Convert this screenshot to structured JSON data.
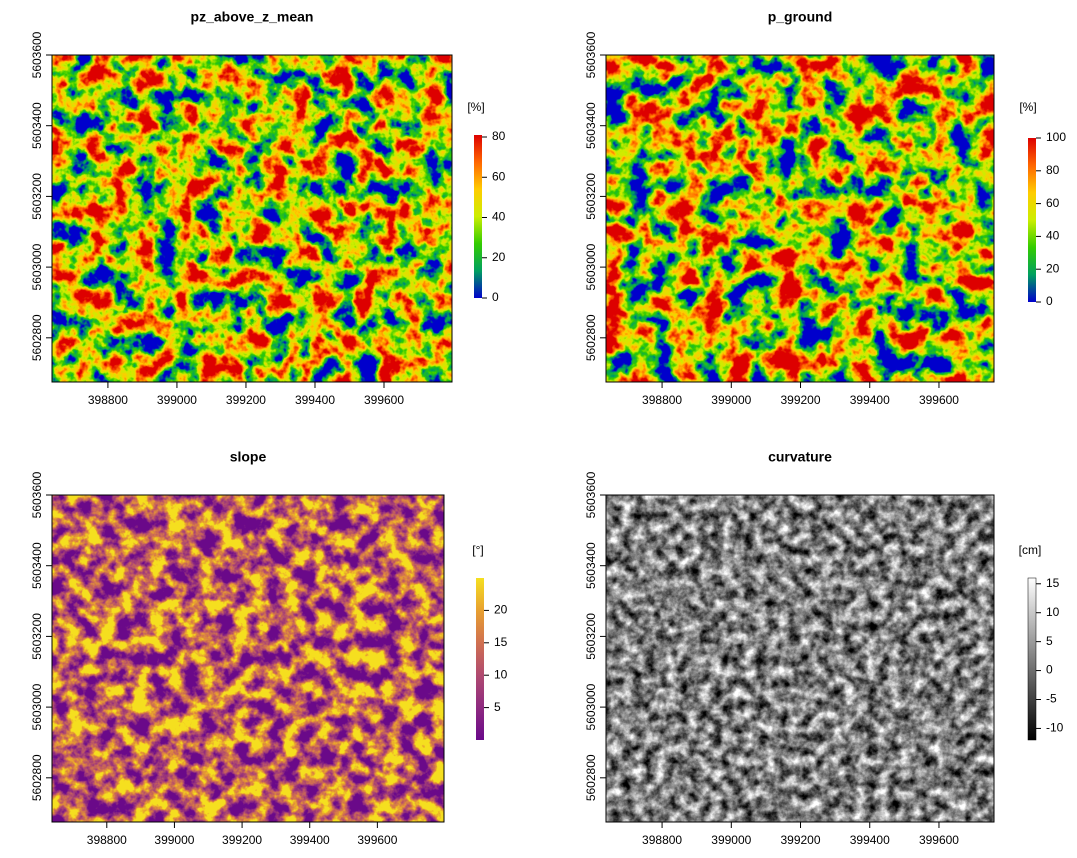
{
  "chart_data": [
    {
      "type": "raster",
      "title": "pz_above_z_mean",
      "xlim": [
        398638,
        399797
      ],
      "ylim": [
        5602675,
        5603600
      ],
      "xticks": [
        398800,
        399000,
        399200,
        399400,
        399600
      ],
      "yticks": [
        5602800,
        5603000,
        5603200,
        5603400,
        5603600
      ],
      "legend_title": "[%]",
      "colorbar": {
        "lim": [
          0,
          81
        ],
        "ticks": [
          0,
          20,
          40,
          60,
          80
        ],
        "colors": [
          "#0000cc",
          "#00a060",
          "#33cc00",
          "#ccee00",
          "#ffcc00",
          "#ff6600",
          "#dd0000"
        ]
      }
    },
    {
      "type": "raster",
      "title": "p_ground",
      "xlim": [
        398638,
        399759
      ],
      "ylim": [
        5602675,
        5603600
      ],
      "xticks": [
        398800,
        399000,
        399200,
        399400,
        399600
      ],
      "yticks": [
        5602800,
        5603000,
        5603200,
        5603400,
        5603600
      ],
      "legend_title": "[%]",
      "colorbar": {
        "lim": [
          0,
          100
        ],
        "ticks": [
          0,
          20,
          40,
          60,
          80,
          100
        ],
        "colors": [
          "#0000cc",
          "#00a060",
          "#33cc00",
          "#ccee00",
          "#ffcc00",
          "#ff6600",
          "#dd0000"
        ]
      }
    },
    {
      "type": "raster",
      "title": "slope",
      "xlim": [
        398638,
        399797
      ],
      "ylim": [
        5602675,
        5603600
      ],
      "xticks": [
        398800,
        399000,
        399200,
        399400,
        399600
      ],
      "yticks": [
        5602800,
        5603000,
        5603200,
        5603400,
        5603600
      ],
      "legend_title": "[°]",
      "colorbar": {
        "lim": [
          0,
          25
        ],
        "ticks": [
          5,
          10,
          15,
          20
        ],
        "colors": [
          "#6a0a8a",
          "#8e2a80",
          "#b04a70",
          "#d07050",
          "#e8a030",
          "#f5e020"
        ]
      }
    },
    {
      "type": "raster",
      "title": "curvature",
      "xlim": [
        398638,
        399759
      ],
      "ylim": [
        5602675,
        5603600
      ],
      "xticks": [
        398800,
        399000,
        399200,
        399400,
        399600
      ],
      "yticks": [
        5602800,
        5603000,
        5603200,
        5603400,
        5603600
      ],
      "legend_title": "[cm]",
      "colorbar": {
        "lim": [
          -12,
          16
        ],
        "ticks": [
          -10,
          -5,
          0,
          5,
          10,
          15
        ],
        "colors": [
          "#000000",
          "#ffffff"
        ]
      }
    }
  ]
}
